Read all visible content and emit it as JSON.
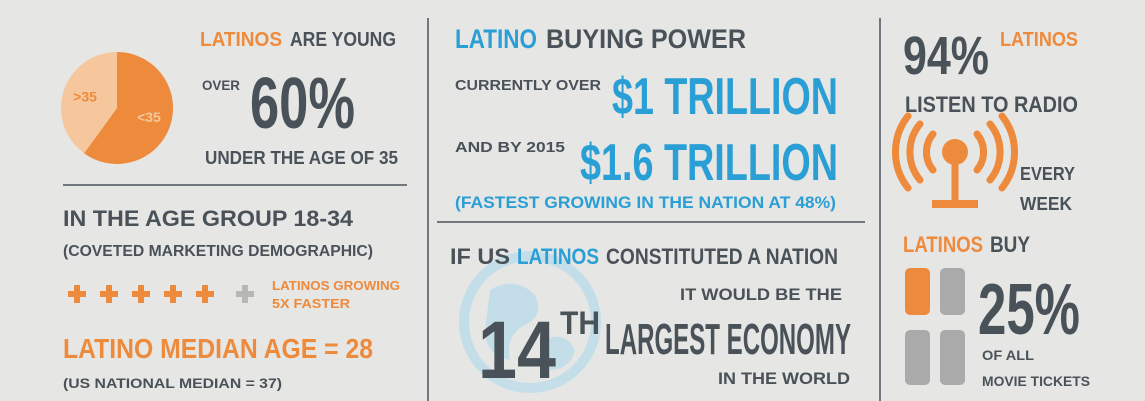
{
  "age": {
    "headline_a": "LATINOS",
    "headline_b": "ARE YOUNG",
    "over": "OVER",
    "percent": "60%",
    "under": "UNDER THE AGE OF 35",
    "pie": {
      "labels": [
        ">35",
        "<35"
      ],
      "values": [
        40,
        60
      ],
      "colors": [
        "#f6c79c",
        "#ee8a3c"
      ]
    }
  },
  "group": {
    "title": "IN THE AGE GROUP 18-34",
    "subtitle": "(COVETED MARKETING DEMOGRAPHIC)",
    "growing": [
      "LATINOS GROWING",
      "5X FASTER"
    ],
    "median": "LATINO MEDIAN AGE = 28",
    "national": "(US NATIONAL MEDIAN = 37)"
  },
  "buying": {
    "title_a": "LATINO",
    "title_b": "BUYING POWER",
    "current_label": "CURRENTLY OVER",
    "current_value": "$1 TRILLION",
    "future_label": "AND BY 2015",
    "future_value": "$1.6 TRILLION",
    "note": "(FASTEST GROWING IN THE NATION AT 48%)"
  },
  "economy": {
    "line1": [
      "IF US",
      "LATINOS",
      "CONSTITUTED A NATION"
    ],
    "line2": "IT WOULD BE THE",
    "rank": "14",
    "suffix": "TH",
    "line3": "LARGEST ECONOMY",
    "line4": "IN THE WORLD"
  },
  "radio": {
    "percent": "94%",
    "who": "LATINOS",
    "listen": "LISTEN TO RADIO",
    "frequency": [
      "EVERY",
      "WEEK"
    ]
  },
  "movies": {
    "who": "LATINOS",
    "verb": "BUY",
    "percent": "25%",
    "desc": [
      "OF ALL",
      "MOVIE TICKETS"
    ]
  }
}
